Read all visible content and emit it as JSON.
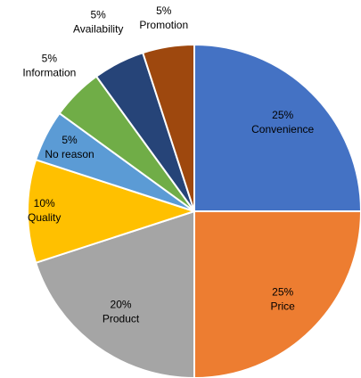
{
  "chart_data": {
    "type": "pie",
    "categories": [
      "Convenience",
      "Price",
      "Product",
      "Quality",
      "No reason",
      "Information",
      "Availability",
      "Promotion"
    ],
    "values": [
      25,
      25,
      20,
      10,
      5,
      5,
      5,
      5
    ],
    "value_labels": [
      "25%",
      "25%",
      "20%",
      "10%",
      "5%",
      "5%",
      "5%",
      "5%"
    ],
    "colors": [
      "#4472c4",
      "#ed7d31",
      "#a5a5a5",
      "#ffc000",
      "#5b9bd5",
      "#70ad47",
      "#264478",
      "#9e480e"
    ]
  }
}
